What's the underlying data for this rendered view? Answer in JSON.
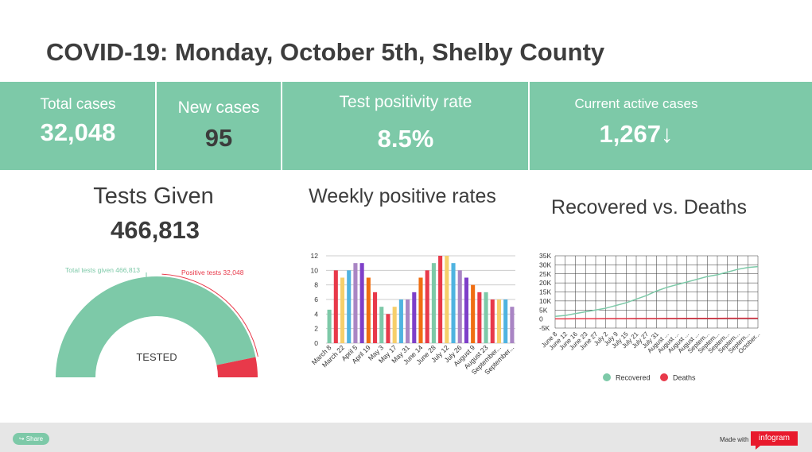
{
  "title": "COVID-19: Monday, October 5th, Shelby County",
  "colors": {
    "accent": "#7dc9a8",
    "red": "#e8394a",
    "brand": "#e8192c"
  },
  "kpis": {
    "total_cases": {
      "label": "Total cases",
      "value": "32,048"
    },
    "new_cases": {
      "label": "New cases",
      "value": "95"
    },
    "positivity": {
      "label": "Test positivity rate",
      "value": "8.5%"
    },
    "active": {
      "label": "Current active cases",
      "value": "1,267",
      "trend_icon": "arrow-down-icon"
    }
  },
  "tests": {
    "title": "Tests Given",
    "value": "466,813",
    "center_label": "TESTED",
    "total_label": "Total tests given 466,813",
    "positive_label": "Positive tests 32,048"
  },
  "chart_data": [
    {
      "type": "pie",
      "subtype": "semicircle",
      "title": "",
      "center_label": "TESTED",
      "slices": [
        {
          "name": "Total tests given",
          "value": 466813,
          "label": "Total tests given 466,813",
          "color": "#7dc9a8"
        },
        {
          "name": "Positive tests",
          "value": 32048,
          "label": "Positive tests 32,048",
          "color": "#e8394a"
        }
      ]
    },
    {
      "type": "bar",
      "title": "Weekly positive rates",
      "xlabel": "",
      "ylabel": "",
      "ylim": [
        0,
        12
      ],
      "yticks": [
        0,
        2,
        4,
        6,
        8,
        10,
        12
      ],
      "grid": true,
      "labels_shown": [
        "March 8",
        "March 22",
        "April 5",
        "April 19",
        "May 3",
        "May 17",
        "May 31",
        "June 14",
        "June 28",
        "July 12",
        "July 26",
        "August 9",
        "August 23",
        "September...",
        "September..."
      ],
      "values": [
        4.6,
        10,
        9,
        10,
        11,
        11,
        9,
        7,
        5,
        4,
        5,
        6,
        6,
        7,
        9,
        10,
        11,
        12,
        12,
        11,
        10,
        9,
        8,
        7,
        7,
        6,
        6,
        6,
        5
      ],
      "colors": [
        "#7dc9a8",
        "#e8394a",
        "#f6cf6b",
        "#4fb3e0",
        "#a985c4",
        "#7e3fc9",
        "#f06e11",
        "#e8394a",
        "#7dc9a8",
        "#e8394a",
        "#f6cf6b",
        "#4fb3e0",
        "#a985c4",
        "#7e3fc9",
        "#f06e11",
        "#e8394a",
        "#7dc9a8",
        "#e8394a",
        "#f6cf6b",
        "#4fb3e0",
        "#a985c4",
        "#7e3fc9",
        "#f06e11",
        "#e8394a",
        "#7dc9a8",
        "#e8394a",
        "#f6cf6b",
        "#4fb3e0",
        "#a985c4"
      ]
    },
    {
      "type": "line",
      "title": "Recovered vs. Deaths",
      "xlabel": "",
      "ylabel": "",
      "ylim": [
        -5000,
        35000
      ],
      "ytick_labels": [
        "-5K",
        "0",
        "5K",
        "10K",
        "15K",
        "20K",
        "25K",
        "30K",
        "35K"
      ],
      "yticks": [
        -5000,
        0,
        5000,
        10000,
        15000,
        20000,
        25000,
        30000,
        35000
      ],
      "grid": true,
      "legend": "bottom",
      "x": [
        "June 8",
        "June 12",
        "June 16",
        "June 23",
        "June 27",
        "July 2",
        "July 9",
        "July 15",
        "July 21",
        "July 27",
        "July 31",
        "August ...",
        "August ...",
        "August ...",
        "August ...",
        "Septem...",
        "Septem...",
        "Septem...",
        "Septem...",
        "Septem...",
        "October..."
      ],
      "series": [
        {
          "name": "Recovered",
          "color": "#7dc9a8",
          "values": [
            1500,
            2000,
            3000,
            4000,
            5000,
            6000,
            7500,
            9000,
            11000,
            13000,
            15500,
            17500,
            19000,
            20500,
            22000,
            23500,
            24500,
            26000,
            27500,
            28500,
            29000
          ]
        },
        {
          "name": "Deaths",
          "color": "#e8394a",
          "values": [
            100,
            120,
            140,
            160,
            180,
            200,
            220,
            240,
            260,
            280,
            300,
            320,
            340,
            360,
            380,
            400,
            410,
            420,
            430,
            440,
            450
          ]
        }
      ]
    }
  ],
  "footer": {
    "share_label": "Share",
    "made_with": "Made with",
    "brand": "infogram"
  }
}
